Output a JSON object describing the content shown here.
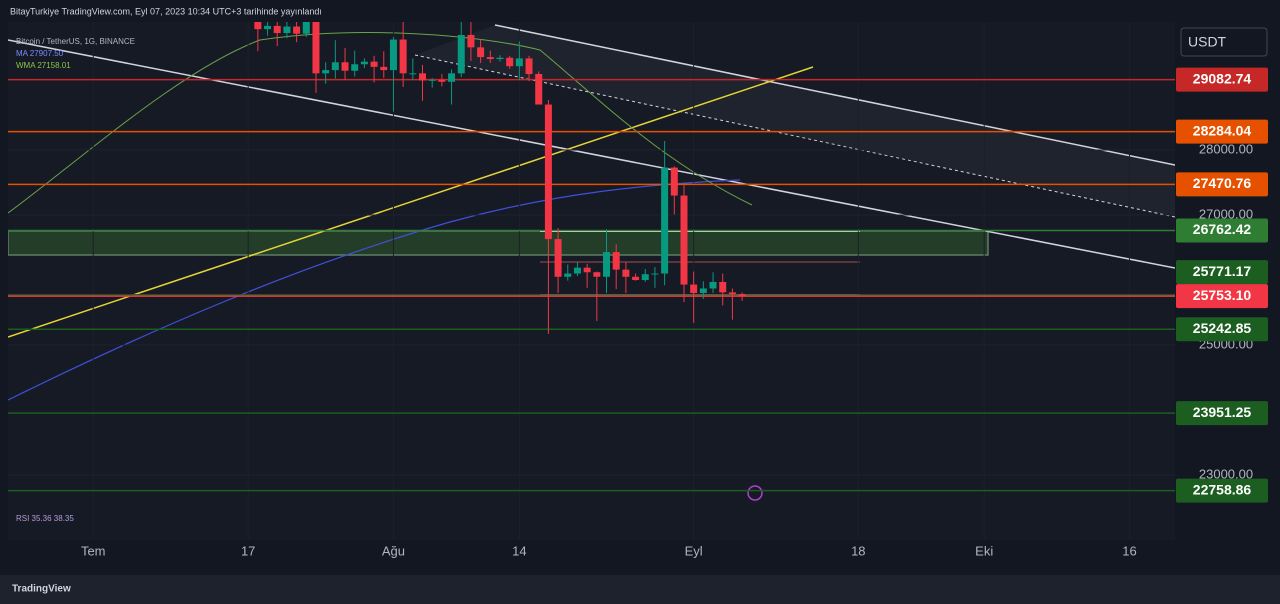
{
  "chart_data": {
    "type": "candlestick",
    "title": "BitayTurkiye TradingView.com, Eyl 07, 2023 10:34 UTC+3 tarihinde yayınlandı",
    "currency": "USDT",
    "legend": [
      "Bitcoin / TetherUS, 1G, BINANCE",
      "MA 27907.50",
      "WMA 27158.01",
      "RSI 35.36 38.35"
    ],
    "brand": "TradingView",
    "up_color": "#089981",
    "down_color": "#f23645",
    "xlim": [
      -8.8,
      111.7
    ],
    "xticks": [
      {
        "value": 0,
        "label": "Tem"
      },
      {
        "value": 16,
        "label": "17"
      },
      {
        "value": 31,
        "label": "Ağu"
      },
      {
        "value": 44,
        "label": "14"
      },
      {
        "value": 62,
        "label": "Eyl"
      },
      {
        "value": 79,
        "label": "18"
      },
      {
        "value": 92,
        "label": "Eki"
      },
      {
        "value": 107,
        "label": "16"
      }
    ],
    "ylim": [
      22000,
      29970
    ],
    "yticks": [
      {
        "value": 28000,
        "label": "28000.00"
      },
      {
        "value": 27000,
        "label": "27000.00"
      },
      {
        "value": 25000,
        "label": "25000.00"
      },
      {
        "value": 23000,
        "label": "23000.00"
      }
    ],
    "x": [
      17,
      18,
      19,
      20,
      21,
      22,
      23,
      24,
      25,
      26,
      27,
      28,
      29,
      30,
      31,
      32,
      33,
      34,
      35,
      36,
      37,
      38,
      39,
      40,
      41,
      42,
      43,
      44,
      45,
      46,
      47,
      48,
      49,
      50,
      51,
      52,
      53,
      54,
      55,
      56,
      57,
      58,
      59,
      60,
      61,
      62,
      63,
      64,
      65,
      66,
      67
    ],
    "open": [
      30140,
      29860,
      29910,
      29800,
      29900,
      29790,
      30080,
      29180,
      29230,
      29350,
      29220,
      29320,
      29360,
      29280,
      29230,
      29700,
      29180,
      29180,
      29070,
      29080,
      29050,
      29180,
      29770,
      29580,
      29430,
      29400,
      29420,
      29290,
      29410,
      29170,
      28700,
      26630,
      26050,
      26100,
      26190,
      26120,
      26050,
      26430,
      26160,
      26050,
      26000,
      26090,
      26100,
      27730,
      27300,
      25930,
      25800,
      25870,
      25970,
      25810,
      25780
    ],
    "high": [
      30230,
      30190,
      30400,
      30050,
      29990,
      30340,
      30100,
      29350,
      29690,
      29570,
      29530,
      29410,
      29450,
      29520,
      29740,
      30040,
      29410,
      29310,
      29110,
      29170,
      29240,
      30180,
      30050,
      29700,
      29530,
      29460,
      29450,
      29670,
      29450,
      29210,
      28770,
      26800,
      26240,
      26270,
      26250,
      26130,
      26780,
      26550,
      26280,
      26100,
      26170,
      26200,
      28140,
      27750,
      27490,
      26130,
      25980,
      26120,
      26100,
      25870,
      25810
    ],
    "low": [
      29520,
      29760,
      29600,
      29720,
      29660,
      29740,
      28880,
      29020,
      29100,
      29080,
      29130,
      29260,
      29040,
      29110,
      28590,
      28970,
      29080,
      28760,
      28960,
      28980,
      28700,
      29120,
      29370,
      29340,
      29340,
      29360,
      29250,
      29080,
      29060,
      28720,
      25170,
      25800,
      25990,
      26060,
      25880,
      25370,
      25800,
      25860,
      25800,
      25990,
      25970,
      25880,
      25920,
      27010,
      25660,
      25340,
      25710,
      25800,
      25610,
      25390,
      25680
    ],
    "close": [
      29860,
      29910,
      29800,
      29900,
      29790,
      30080,
      29180,
      29230,
      29350,
      29220,
      29320,
      29360,
      29280,
      29230,
      29700,
      29180,
      29180,
      29070,
      29080,
      29050,
      29180,
      29770,
      29580,
      29430,
      29400,
      29420,
      29290,
      29410,
      29170,
      28700,
      26630,
      26050,
      26100,
      26190,
      26120,
      26050,
      26430,
      26160,
      26050,
      26000,
      26090,
      26100,
      27730,
      27300,
      25930,
      25800,
      25870,
      25970,
      25810,
      25780,
      25753.1
    ],
    "levels": [
      {
        "value": 29082.74,
        "label": "29082.74",
        "color": "#c62828"
      },
      {
        "value": 28284.04,
        "label": "28284.04",
        "color": "#e65100"
      },
      {
        "value": 27470.76,
        "label": "27470.76",
        "color": "#e65100"
      },
      {
        "value": 26762.42,
        "label": "26762.42",
        "color": "#2e7d32"
      },
      {
        "value": 25771.17,
        "label": "25771.17",
        "color": "#1b5e20"
      },
      {
        "value": 25753.1,
        "label": "25753.10",
        "color": "#f23645"
      },
      {
        "value": 25242.85,
        "label": "25242.85",
        "color": "#1b5e20"
      },
      {
        "value": 23951.25,
        "label": "23951.25",
        "color": "#1b5e20"
      },
      {
        "value": 22758.86,
        "label": "22758.86",
        "color": "#1b5e20"
      }
    ]
  }
}
